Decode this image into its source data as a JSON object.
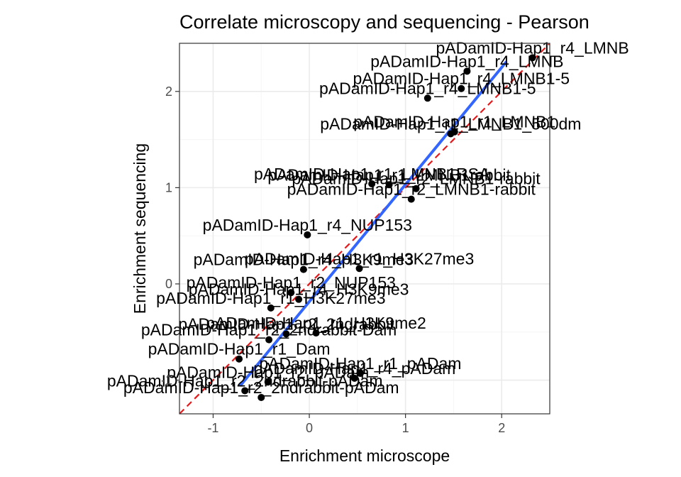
{
  "chart_data": {
    "type": "scatter",
    "title": "Correlate microscopy and sequencing - Pearson",
    "xlabel": "Enrichment microscope",
    "ylabel": "Enrichment sequencing",
    "xlim": [
      -1.35,
      2.5
    ],
    "ylim": [
      -1.35,
      2.5
    ],
    "x_ticks": [
      -1,
      0,
      1,
      2
    ],
    "y_ticks": [
      -1,
      0,
      1,
      2
    ],
    "grid": true,
    "identity_line": {
      "style": "dashed",
      "color": "#e41a1c",
      "slope": 1,
      "intercept": 0
    },
    "fit_line": {
      "color": "#3366ff",
      "x": [
        -0.72,
        2.05
      ],
      "y": [
        -1.06,
        2.31
      ]
    },
    "colors": {
      "points": "#000000",
      "panel_border": "#333333",
      "grid_major": "#ebebeb",
      "grid_minor": "#f5f5f5"
    },
    "points": [
      {
        "x": 2.32,
        "y": 2.35,
        "label": "pADamID-Hap1_r4_LMNB"
      },
      {
        "x": 1.64,
        "y": 2.21,
        "label": "pADamID-Hap1_r4_LMNB"
      },
      {
        "x": 1.58,
        "y": 2.03,
        "label": "pADamID-Hap1_r4_LMNB1-5"
      },
      {
        "x": 1.23,
        "y": 1.93,
        "label": "pADamID-Hap1_r4_LMNB1-5"
      },
      {
        "x": 1.47,
        "y": 1.56,
        "label": "pADamID-Hap1_r1_LMNB1_500dm"
      },
      {
        "x": 1.51,
        "y": 1.58,
        "label": "pADamID-Hap1_r1_LMNB1"
      },
      {
        "x": 0.65,
        "y": 1.04,
        "label": "pADamID-Hap1_r1_LMNB1RSA"
      },
      {
        "x": 0.83,
        "y": 1.03,
        "label": "pADamID-Hap1_r1_LMNB1rabbit"
      },
      {
        "x": 1.11,
        "y": 0.99,
        "label": "pADamID-Hap1_r2_LMNB1-rabbit"
      },
      {
        "x": 1.06,
        "y": 0.88,
        "label": "pADamID-Hap1_r2_LMNB1-rabbit"
      },
      {
        "x": -0.02,
        "y": 0.51,
        "label": "pADamID-Hap1_r4_NUP153"
      },
      {
        "x": -0.06,
        "y": 0.15,
        "label": "pADamID-Hap1_r4_H3K9me3"
      },
      {
        "x": 0.52,
        "y": 0.16,
        "label": "pADamID-Hap1_r1_H3K27me3"
      },
      {
        "x": -0.19,
        "y": -0.09,
        "label": "pADamID-Hap1_r2_NUP153"
      },
      {
        "x": -0.11,
        "y": -0.16,
        "label": "pADamID-Hap1_r4_H3K9me3"
      },
      {
        "x": -0.4,
        "y": -0.25,
        "label": "pADamID-Hap1_r1_H3K27me3"
      },
      {
        "x": 0.07,
        "y": -0.51,
        "label": "pADamID-Hap1_r1_H3K9me2"
      },
      {
        "x": -0.24,
        "y": -0.52,
        "label": "pADamID-Hap1_r2_2ndrabbit"
      },
      {
        "x": -0.42,
        "y": -0.58,
        "label": "pADamID-Hap1_r2_2ndrabbit-Dam"
      },
      {
        "x": -0.73,
        "y": -0.78,
        "label": "pADamID-Hap1_r1_Dam"
      },
      {
        "x": 0.53,
        "y": -0.93,
        "label": "pADamID-Hap1_r1_pADam"
      },
      {
        "x": 0.47,
        "y": -0.98,
        "label": "pADamID-Hap1_r4_pADam"
      },
      {
        "x": -0.43,
        "y": -1.02,
        "label": "pADamID-Hap1_r2_pADam"
      },
      {
        "x": -0.67,
        "y": -1.11,
        "label": "pADamID-Hap1_r2_2ndrabbit-pADam"
      },
      {
        "x": -0.5,
        "y": -1.18,
        "label": "pADamID-Hap1_r2_2ndrabbit-pADam"
      }
    ]
  }
}
